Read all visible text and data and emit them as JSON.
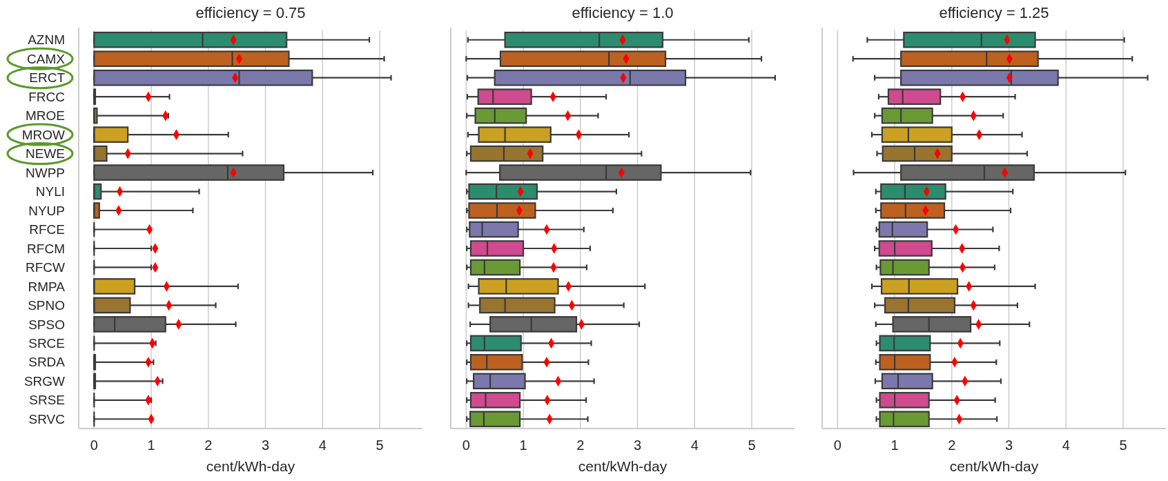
{
  "chart_data": [
    {
      "type": "box",
      "orientation": "horizontal",
      "title": "efficiency = 0.75",
      "xlabel": "cent/kWh-day",
      "grid": "x",
      "marker": "diamond",
      "categories": [
        "AZNM",
        "CAMX",
        "ERCT",
        "FRCC",
        "MROE",
        "MROW",
        "NEWE",
        "NWPP",
        "NYLI",
        "NYUP",
        "RFCE",
        "RFCM",
        "RFCW",
        "RMPA",
        "SPNO",
        "SPSO",
        "SRCE",
        "SRDA",
        "SRGW",
        "SRSE",
        "SRVC"
      ],
      "colors": [
        "#2b8c6e",
        "#bd6120",
        "#7b78ab",
        "#cf4a8f",
        "#6a9a33",
        "#cca021",
        "#98742f",
        "#666666",
        "#2b8c6e",
        "#bd6120",
        null,
        null,
        null,
        "#cca021",
        "#98742f",
        "#666666",
        null,
        "#bd6120",
        "#7b78ab",
        null,
        null
      ],
      "boxes": [
        {
          "low": 0,
          "q1": 0,
          "median": 1.9,
          "q3": 3.37,
          "high": 4.82,
          "mean": 2.44
        },
        {
          "low": 0,
          "q1": 0,
          "median": 2.42,
          "q3": 3.41,
          "high": 5.08,
          "mean": 2.54
        },
        {
          "low": 0,
          "q1": 0,
          "median": 2.54,
          "q3": 3.82,
          "high": 5.2,
          "mean": 2.47
        },
        {
          "low": 0,
          "q1": 0,
          "median": 0,
          "q3": 0.02,
          "high": 1.32,
          "mean": 0.95
        },
        {
          "low": 0,
          "q1": 0,
          "median": 0,
          "q3": 0.05,
          "high": 1.3,
          "mean": 1.25
        },
        {
          "low": 0,
          "q1": 0,
          "median": 0,
          "q3": 0.59,
          "high": 2.35,
          "mean": 1.44
        },
        {
          "low": 0,
          "q1": 0,
          "median": 0,
          "q3": 0.22,
          "high": 2.6,
          "mean": 0.59
        },
        {
          "low": 0,
          "q1": 0,
          "median": 2.34,
          "q3": 3.32,
          "high": 4.88,
          "mean": 2.44
        },
        {
          "low": 0,
          "q1": 0,
          "median": 0,
          "q3": 0.12,
          "high": 1.84,
          "mean": 0.45
        },
        {
          "low": 0,
          "q1": 0,
          "median": 0,
          "q3": 0.09,
          "high": 1.73,
          "mean": 0.43
        },
        {
          "low": 0,
          "q1": 0,
          "median": 0,
          "q3": 0,
          "high": 0.96,
          "mean": 0.97
        },
        {
          "low": 0,
          "q1": 0,
          "median": 0,
          "q3": 0,
          "high": 1.0,
          "mean": 1.07
        },
        {
          "low": 0,
          "q1": 0,
          "median": 0,
          "q3": 0,
          "high": 1.0,
          "mean": 1.07
        },
        {
          "low": 0,
          "q1": 0,
          "median": 0,
          "q3": 0.71,
          "high": 2.52,
          "mean": 1.27
        },
        {
          "low": 0,
          "q1": 0,
          "median": 0,
          "q3": 0.63,
          "high": 2.13,
          "mean": 1.31
        },
        {
          "low": 0,
          "q1": 0,
          "median": 0.36,
          "q3": 1.25,
          "high": 2.48,
          "mean": 1.48
        },
        {
          "low": 0,
          "q1": 0,
          "median": 0,
          "q3": 0,
          "high": 1.08,
          "mean": 1.02
        },
        {
          "low": 0,
          "q1": 0,
          "median": 0,
          "q3": 0.02,
          "high": 1.04,
          "mean": 0.95
        },
        {
          "low": 0,
          "q1": 0,
          "median": 0,
          "q3": 0.02,
          "high": 1.2,
          "mean": 1.11
        },
        {
          "low": 0,
          "q1": 0,
          "median": 0,
          "q3": 0,
          "high": 1.0,
          "mean": 0.95
        },
        {
          "low": 0,
          "q1": 0,
          "median": 0,
          "q3": 0,
          "high": 0.99,
          "mean": 1.0
        }
      ],
      "xlim": [
        -0.27,
        5.75
      ],
      "xticks": [
        0,
        1,
        2,
        3,
        4,
        5
      ]
    },
    {
      "type": "box",
      "orientation": "horizontal",
      "title": "efficiency = 1.0",
      "xlabel": "cent/kWh-day",
      "grid": "x",
      "marker": "diamond",
      "tick_labels": "x",
      "categories": [
        "AZNM",
        "CAMX",
        "ERCT",
        "FRCC",
        "MROE",
        "MROW",
        "NEWE",
        "NWPP",
        "NYLI",
        "NYUP",
        "RFCE",
        "RFCM",
        "RFCW",
        "RMPA",
        "SPNO",
        "SPSO",
        "SRCE",
        "SRDA",
        "SRGW",
        "SRSE",
        "SRVC"
      ],
      "colors": [
        "#2b8c6e",
        "#bd6120",
        "#7b78ab",
        "#cf4a8f",
        "#6a9a33",
        "#cca021",
        "#98742f",
        "#666666",
        "#2b8c6e",
        "#bd6120",
        "#7b78ab",
        "#cf4a8f",
        "#6a9a33",
        "#cca021",
        "#98742f",
        "#666666",
        "#2b8c6e",
        "#bd6120",
        "#7b78ab",
        "#cf4a8f",
        "#6a9a33"
      ],
      "boxes": [
        {
          "low": 0.03,
          "q1": 0.68,
          "median": 2.33,
          "q3": 3.44,
          "high": 4.95,
          "mean": 2.74
        },
        {
          "low": 0,
          "q1": 0.6,
          "median": 2.5,
          "q3": 3.49,
          "high": 5.17,
          "mean": 2.8
        },
        {
          "low": 0.02,
          "q1": 0.5,
          "median": 2.87,
          "q3": 3.84,
          "high": 5.41,
          "mean": 2.75
        },
        {
          "low": 0.02,
          "q1": 0.21,
          "median": 0.47,
          "q3": 1.14,
          "high": 2.45,
          "mean": 1.52
        },
        {
          "low": 0.01,
          "q1": 0.16,
          "median": 0.5,
          "q3": 1.05,
          "high": 2.31,
          "mean": 1.78
        },
        {
          "low": 0.03,
          "q1": 0.22,
          "median": 0.68,
          "q3": 1.48,
          "high": 2.85,
          "mean": 1.97
        },
        {
          "low": 0.01,
          "q1": 0.08,
          "median": 0.66,
          "q3": 1.34,
          "high": 3.07,
          "mean": 1.12
        },
        {
          "low": 0,
          "q1": 0.59,
          "median": 2.45,
          "q3": 3.41,
          "high": 4.98,
          "mean": 2.72
        },
        {
          "low": 0.01,
          "q1": 0.05,
          "median": 0.53,
          "q3": 1.24,
          "high": 2.63,
          "mean": 0.95
        },
        {
          "low": 0.01,
          "q1": 0.05,
          "median": 0.54,
          "q3": 1.21,
          "high": 2.57,
          "mean": 0.93
        },
        {
          "low": 0.01,
          "q1": 0.06,
          "median": 0.28,
          "q3": 0.91,
          "high": 2.06,
          "mean": 1.41
        },
        {
          "low": 0.01,
          "q1": 0.08,
          "median": 0.37,
          "q3": 1.0,
          "high": 2.17,
          "mean": 1.54
        },
        {
          "low": 0.01,
          "q1": 0.08,
          "median": 0.32,
          "q3": 0.94,
          "high": 2.11,
          "mean": 1.53
        },
        {
          "low": 0.04,
          "q1": 0.22,
          "median": 0.7,
          "q3": 1.61,
          "high": 3.13,
          "mean": 1.79
        },
        {
          "low": 0.04,
          "q1": 0.24,
          "median": 0.68,
          "q3": 1.55,
          "high": 2.76,
          "mean": 1.85
        },
        {
          "low": 0.07,
          "q1": 0.42,
          "median": 1.14,
          "q3": 1.93,
          "high": 3.03,
          "mean": 2.02
        },
        {
          "low": 0.01,
          "q1": 0.08,
          "median": 0.32,
          "q3": 0.96,
          "high": 2.19,
          "mean": 1.49
        },
        {
          "low": 0.01,
          "q1": 0.08,
          "median": 0.36,
          "q3": 0.98,
          "high": 2.14,
          "mean": 1.41
        },
        {
          "low": 0.01,
          "q1": 0.13,
          "median": 0.42,
          "q3": 1.03,
          "high": 2.24,
          "mean": 1.61
        },
        {
          "low": 0.01,
          "q1": 0.08,
          "median": 0.34,
          "q3": 0.94,
          "high": 2.1,
          "mean": 1.42
        },
        {
          "low": 0.01,
          "q1": 0.07,
          "median": 0.31,
          "q3": 0.94,
          "high": 2.13,
          "mean": 1.46
        }
      ],
      "xlim": [
        -0.27,
        5.75
      ],
      "xticks": [
        0,
        1,
        2,
        3,
        4,
        5
      ]
    },
    {
      "type": "box",
      "orientation": "horizontal",
      "title": "efficiency = 1.25",
      "xlabel": "cent/kWh-day",
      "grid": "x",
      "marker": "diamond",
      "tick_labels": "x",
      "categories": [
        "AZNM",
        "CAMX",
        "ERCT",
        "FRCC",
        "MROE",
        "MROW",
        "NEWE",
        "NWPP",
        "NYLI",
        "NYUP",
        "RFCE",
        "RFCM",
        "RFCW",
        "RMPA",
        "SPNO",
        "SPSO",
        "SRCE",
        "SRDA",
        "SRGW",
        "SRSE",
        "SRVC"
      ],
      "colors": [
        "#2b8c6e",
        "#bd6120",
        "#7b78ab",
        "#cf4a8f",
        "#6a9a33",
        "#cca021",
        "#98742f",
        "#666666",
        "#2b8c6e",
        "#bd6120",
        "#7b78ab",
        "#cf4a8f",
        "#6a9a33",
        "#cca021",
        "#98742f",
        "#666666",
        "#2b8c6e",
        "#bd6120",
        "#7b78ab",
        "#cf4a8f",
        "#6a9a33"
      ],
      "boxes": [
        {
          "low": 0.52,
          "q1": 1.16,
          "median": 2.52,
          "q3": 3.46,
          "high": 5.02,
          "mean": 2.97
        },
        {
          "low": 0.27,
          "q1": 1.11,
          "median": 2.61,
          "q3": 3.51,
          "high": 5.16,
          "mean": 3.01
        },
        {
          "low": 0.65,
          "q1": 1.11,
          "median": 3.04,
          "q3": 3.86,
          "high": 5.43,
          "mean": 3.01
        },
        {
          "low": 0.72,
          "q1": 0.89,
          "median": 1.14,
          "q3": 1.8,
          "high": 3.11,
          "mean": 2.19
        },
        {
          "low": 0.65,
          "q1": 0.78,
          "median": 1.11,
          "q3": 1.66,
          "high": 2.9,
          "mean": 2.38
        },
        {
          "low": 0.6,
          "q1": 0.78,
          "median": 1.24,
          "q3": 2.0,
          "high": 3.23,
          "mean": 2.48
        },
        {
          "low": 0.69,
          "q1": 0.79,
          "median": 1.35,
          "q3": 2.0,
          "high": 3.32,
          "mean": 1.75
        },
        {
          "low": 0.28,
          "q1": 1.11,
          "median": 2.57,
          "q3": 3.44,
          "high": 5.04,
          "mean": 2.93
        },
        {
          "low": 0.67,
          "q1": 0.76,
          "median": 1.18,
          "q3": 1.89,
          "high": 3.07,
          "mean": 1.56
        },
        {
          "low": 0.67,
          "q1": 0.76,
          "median": 1.19,
          "q3": 1.87,
          "high": 3.03,
          "mean": 1.54
        },
        {
          "low": 0.68,
          "q1": 0.73,
          "median": 0.96,
          "q3": 1.57,
          "high": 2.72,
          "mean": 2.07
        },
        {
          "low": 0.65,
          "q1": 0.73,
          "median": 1.0,
          "q3": 1.65,
          "high": 2.83,
          "mean": 2.18
        },
        {
          "low": 0.68,
          "q1": 0.75,
          "median": 0.97,
          "q3": 1.6,
          "high": 2.75,
          "mean": 2.19
        },
        {
          "low": 0.6,
          "q1": 0.77,
          "median": 1.25,
          "q3": 2.1,
          "high": 3.46,
          "mean": 2.3
        },
        {
          "low": 0.65,
          "q1": 0.83,
          "median": 1.24,
          "q3": 2.05,
          "high": 3.15,
          "mean": 2.38
        },
        {
          "low": 0.67,
          "q1": 0.97,
          "median": 1.6,
          "q3": 2.33,
          "high": 3.36,
          "mean": 2.47
        },
        {
          "low": 0.68,
          "q1": 0.74,
          "median": 0.99,
          "q3": 1.62,
          "high": 2.84,
          "mean": 2.15
        },
        {
          "low": 0.67,
          "q1": 0.74,
          "median": 1.0,
          "q3": 1.62,
          "high": 2.78,
          "mean": 2.05
        },
        {
          "low": 0.66,
          "q1": 0.78,
          "median": 1.06,
          "q3": 1.66,
          "high": 2.86,
          "mean": 2.23
        },
        {
          "low": 0.68,
          "q1": 0.74,
          "median": 1.0,
          "q3": 1.6,
          "high": 2.76,
          "mean": 2.09
        },
        {
          "low": 0.68,
          "q1": 0.74,
          "median": 0.98,
          "q3": 1.6,
          "high": 2.79,
          "mean": 2.13
        }
      ],
      "xlim": [
        -0.27,
        5.75
      ],
      "xticks": [
        0,
        1,
        2,
        3,
        4,
        5
      ]
    }
  ]
}
